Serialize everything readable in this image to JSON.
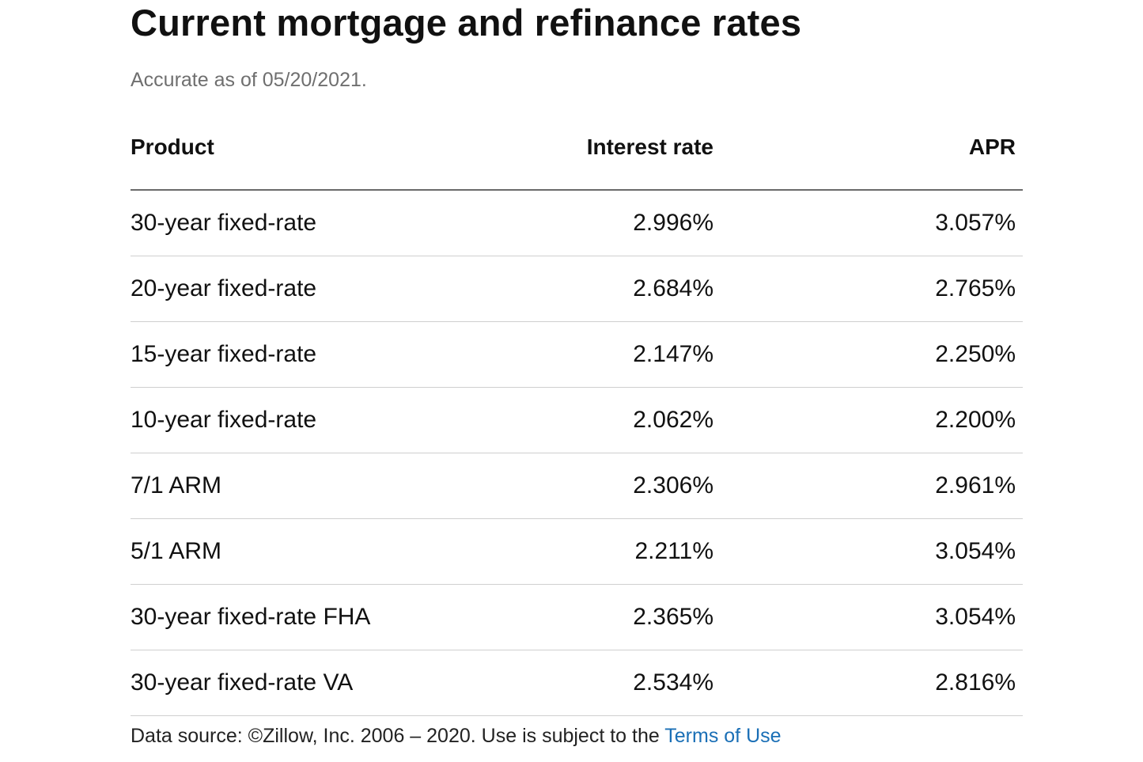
{
  "title": "Current mortgage and refinance rates",
  "subtitle": "Accurate as of 05/20/2021.",
  "table": {
    "headers": [
      "Product",
      "Interest rate",
      "APR"
    ],
    "rows": [
      {
        "product": "30-year fixed-rate",
        "interest_rate": "2.996%",
        "apr": "3.057%"
      },
      {
        "product": "20-year fixed-rate",
        "interest_rate": "2.684%",
        "apr": "2.765%"
      },
      {
        "product": "15-year fixed-rate",
        "interest_rate": "2.147%",
        "apr": "2.250%"
      },
      {
        "product": "10-year fixed-rate",
        "interest_rate": "2.062%",
        "apr": "2.200%"
      },
      {
        "product": "7/1 ARM",
        "interest_rate": "2.306%",
        "apr": "2.961%"
      },
      {
        "product": "5/1 ARM",
        "interest_rate": "2.211%",
        "apr": "3.054%"
      },
      {
        "product": "30-year fixed-rate FHA",
        "interest_rate": "2.365%",
        "apr": "3.054%"
      },
      {
        "product": "30-year fixed-rate VA",
        "interest_rate": "2.534%",
        "apr": "2.816%"
      }
    ]
  },
  "footer": {
    "text": "Data source: ©Zillow, Inc. 2006 – 2020. Use is subject to the ",
    "link_label": "Terms of Use",
    "link_color": "#1a6fb6"
  }
}
